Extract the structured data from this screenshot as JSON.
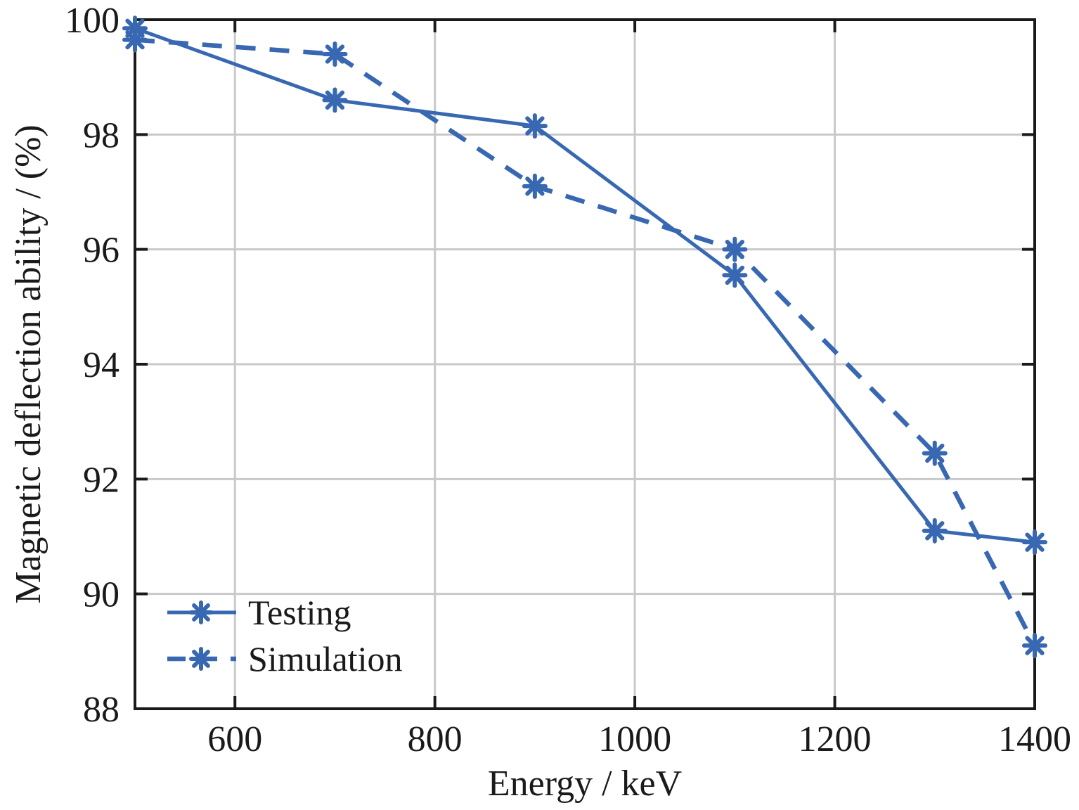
{
  "chart_data": {
    "type": "line",
    "title": "",
    "xlabel": "Energy / keV",
    "ylabel": "Magnetic deflection ability / (%)",
    "x": [
      500,
      700,
      900,
      1100,
      1300,
      1400
    ],
    "series": [
      {
        "name": "Testing",
        "style": "solid",
        "values": [
          99.85,
          98.6,
          98.15,
          95.55,
          91.1,
          90.9
        ]
      },
      {
        "name": "Simulation",
        "style": "dashed",
        "values": [
          99.65,
          99.4,
          97.1,
          96.0,
          92.45,
          89.1
        ]
      }
    ],
    "xlim": [
      500,
      1400
    ],
    "ylim": [
      88,
      100
    ],
    "xticks": [
      600,
      800,
      1000,
      1200,
      1400
    ],
    "yticks": [
      88,
      90,
      92,
      94,
      96,
      98,
      100
    ],
    "grid": true,
    "legend_position": "lower-left",
    "marker": "asterisk",
    "line_color": "#3768b1",
    "grid_color": "#c9c9c9",
    "axis_color": "#1a1a1a",
    "background_color": "#ffffff"
  }
}
